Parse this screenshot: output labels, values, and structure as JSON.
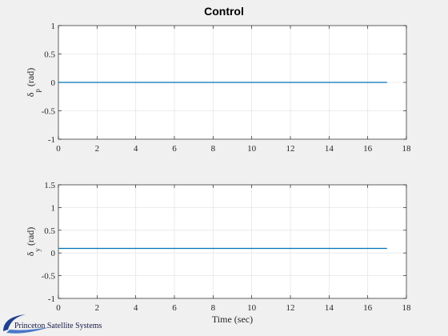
{
  "window": {
    "title": "Control"
  },
  "logo": {
    "text": "Princeton Satellite Systems"
  },
  "colors": {
    "line": "#0072bd",
    "axes_bg": "#ffffff",
    "grid": "#e6e6e6",
    "figure_bg": "#f0f0f0"
  },
  "chart_data": [
    {
      "type": "line",
      "title": "Control",
      "xlabel": "",
      "ylabel_symbol": "δ",
      "ylabel_sub": "p",
      "ylabel_unit": "(rad)",
      "xlim": [
        0,
        18
      ],
      "ylim": [
        -1,
        1
      ],
      "xticks": [
        0,
        2,
        4,
        6,
        8,
        10,
        12,
        14,
        16,
        18
      ],
      "yticks": [
        -1,
        -0.5,
        0,
        0.5,
        1
      ],
      "grid": true,
      "series": [
        {
          "x": [
            0,
            17
          ],
          "y": [
            0,
            0
          ]
        }
      ]
    },
    {
      "type": "line",
      "title": "",
      "xlabel": "Time (sec)",
      "ylabel_symbol": "δ",
      "ylabel_sub": "y",
      "ylabel_unit": "(rad)",
      "xlim": [
        0,
        18
      ],
      "ylim": [
        -1,
        1.5
      ],
      "xticks": [
        0,
        2,
        4,
        6,
        8,
        10,
        12,
        14,
        16,
        18
      ],
      "yticks": [
        -1,
        -0.5,
        0,
        0.5,
        1,
        1.5
      ],
      "grid": true,
      "series": [
        {
          "x": [
            0,
            17
          ],
          "y": [
            0.1,
            0.1
          ]
        }
      ]
    }
  ]
}
